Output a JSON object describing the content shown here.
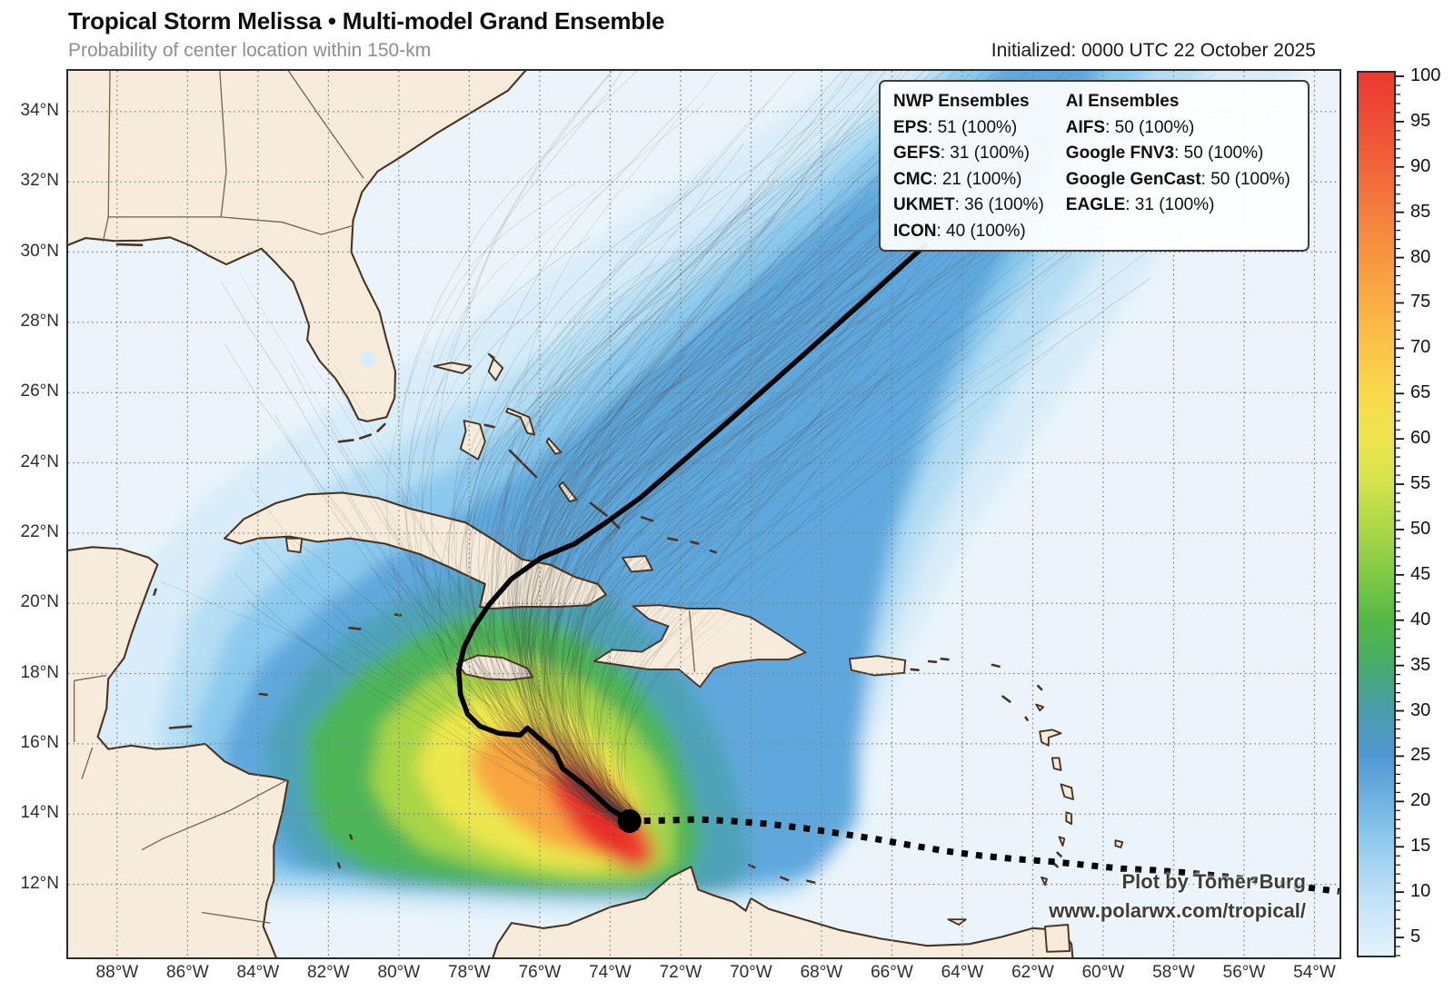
{
  "header": {
    "title": "Tropical Storm Melissa • Multi-model Grand Ensemble",
    "subtitle": "Probability of center location within 150-km",
    "initialized": "Initialized: 0000 UTC 22 October 2025"
  },
  "attribution": {
    "line1": "Plot by Tomer Burg",
    "line2": "www.polarwx.com/tropical/"
  },
  "legend": {
    "columns": [
      {
        "header": "NWP Ensembles",
        "entries": [
          {
            "name": "EPS",
            "value": "51 (100%)"
          },
          {
            "name": "GEFS",
            "value": "31 (100%)"
          },
          {
            "name": "CMC",
            "value": "21 (100%)"
          },
          {
            "name": "UKMET",
            "value": "36 (100%)"
          },
          {
            "name": "ICON",
            "value": "40 (100%)"
          }
        ]
      },
      {
        "header": "AI Ensembles",
        "entries": [
          {
            "name": "AIFS",
            "value": "50 (100%)"
          },
          {
            "name": "Google FNV3",
            "value": "50 (100%)"
          },
          {
            "name": "Google GenCast",
            "value": "50 (100%)"
          },
          {
            "name": "EAGLE",
            "value": "31 (100%)"
          }
        ]
      }
    ]
  },
  "axes": {
    "x_ticks": [
      [
        88,
        "88°W"
      ],
      [
        86,
        "86°W"
      ],
      [
        84,
        "84°W"
      ],
      [
        82,
        "82°W"
      ],
      [
        80,
        "80°W"
      ],
      [
        78,
        "78°W"
      ],
      [
        76,
        "76°W"
      ],
      [
        74,
        "74°W"
      ],
      [
        72,
        "72°W"
      ],
      [
        70,
        "70°W"
      ],
      [
        68,
        "68°W"
      ],
      [
        66,
        "66°W"
      ],
      [
        64,
        "64°W"
      ],
      [
        62,
        "62°W"
      ],
      [
        60,
        "60°W"
      ],
      [
        58,
        "58°W"
      ],
      [
        56,
        "56°W"
      ],
      [
        54,
        "54°W"
      ]
    ],
    "y_ticks": [
      [
        34,
        "34°N"
      ],
      [
        32,
        "32°N"
      ],
      [
        30,
        "30°N"
      ],
      [
        28,
        "28°N"
      ],
      [
        26,
        "26°N"
      ],
      [
        24,
        "24°N"
      ],
      [
        22,
        "22°N"
      ],
      [
        20,
        "20°N"
      ],
      [
        18,
        "18°N"
      ],
      [
        16,
        "16°N"
      ],
      [
        14,
        "14°N"
      ],
      [
        12,
        "12°N"
      ]
    ]
  },
  "colorbar": {
    "unit": "%",
    "label_values": [
      100,
      95,
      90,
      85,
      80,
      75,
      70,
      65,
      60,
      55,
      50,
      45,
      40,
      35,
      30,
      25,
      20,
      15,
      10,
      5
    ],
    "stops": [
      [
        100,
        "#ec3a31"
      ],
      [
        95,
        "#ee4f35"
      ],
      [
        90,
        "#f1653a"
      ],
      [
        85,
        "#f47f3e"
      ],
      [
        80,
        "#f79741"
      ],
      [
        75,
        "#f9ae45"
      ],
      [
        70,
        "#fbc448"
      ],
      [
        65,
        "#f8da4b"
      ],
      [
        60,
        "#eee54e"
      ],
      [
        55,
        "#d2e24b"
      ],
      [
        50,
        "#aad747"
      ],
      [
        45,
        "#80ca45"
      ],
      [
        40,
        "#54b847"
      ],
      [
        35,
        "#47ab68"
      ],
      [
        30,
        "#4a9dab"
      ],
      [
        25,
        "#5197d2"
      ],
      [
        20,
        "#6fb2e2"
      ],
      [
        15,
        "#93cbee"
      ],
      [
        10,
        "#bbdef4"
      ],
      [
        5,
        "#d9edfa"
      ],
      [
        3,
        "#e3f2fb"
      ]
    ]
  },
  "colors": {
    "ocean": "#eaf4fa",
    "land": "#f7ecdb",
    "coast": "#4a3322",
    "state_border": "#7a604b",
    "grid": "#808080",
    "track": "#000000",
    "frame": "#2b2b2b",
    "lake": "#d9edf8",
    "spaghetti": "#3d3d3d"
  },
  "chart_data": {
    "type": "heatmap",
    "title": "Tropical Storm Melissa • Multi-model Grand Ensemble",
    "subtitle": "Probability of center location within 150-km",
    "initialized": "0000 UTC 22 October 2025",
    "storm": {
      "name": "Melissa",
      "classification": "Tropical Storm"
    },
    "extent": {
      "lon_west_W": 89.39,
      "lon_east_W": 53.29,
      "lat_south_N": 9.92,
      "lat_north_N": 35.16
    },
    "colorbar": {
      "label": "Probability of center location within 150-km (%)",
      "min": 5,
      "max": 100,
      "tick_step": 5
    },
    "ensembles": [
      {
        "group": "NWP",
        "name": "EPS",
        "members": 51,
        "availability_pct": 100
      },
      {
        "group": "NWP",
        "name": "GEFS",
        "members": 31,
        "availability_pct": 100
      },
      {
        "group": "NWP",
        "name": "CMC",
        "members": 21,
        "availability_pct": 100
      },
      {
        "group": "NWP",
        "name": "UKMET",
        "members": 36,
        "availability_pct": 100
      },
      {
        "group": "NWP",
        "name": "ICON",
        "members": 40,
        "availability_pct": 100
      },
      {
        "group": "AI",
        "name": "AIFS",
        "members": 50,
        "availability_pct": 100
      },
      {
        "group": "AI",
        "name": "Google FNV3",
        "members": 50,
        "availability_pct": 100
      },
      {
        "group": "AI",
        "name": "Google GenCast",
        "members": 50,
        "availability_pct": 100
      },
      {
        "group": "AI",
        "name": "EAGLE",
        "members": 31,
        "availability_pct": 100
      }
    ],
    "current_position": {
      "lon_W": 73.45,
      "lat_N": 13.8
    },
    "mean_track_lonW_latN": [
      [
        73.45,
        13.8
      ],
      [
        74.0,
        14.15
      ],
      [
        74.7,
        14.8
      ],
      [
        75.35,
        15.3
      ],
      [
        75.55,
        15.75
      ],
      [
        75.95,
        16.1
      ],
      [
        76.35,
        16.45
      ],
      [
        76.55,
        16.25
      ],
      [
        77.15,
        16.3
      ],
      [
        77.7,
        16.5
      ],
      [
        78.05,
        16.85
      ],
      [
        78.25,
        17.4
      ],
      [
        78.3,
        18.1
      ],
      [
        78.15,
        18.75
      ],
      [
        77.85,
        19.35
      ],
      [
        77.45,
        19.95
      ],
      [
        76.8,
        20.7
      ],
      [
        75.95,
        21.3
      ],
      [
        75.0,
        21.7
      ],
      [
        74.05,
        22.35
      ],
      [
        73.15,
        23.0
      ],
      [
        72.05,
        23.95
      ],
      [
        70.85,
        25.0
      ],
      [
        69.55,
        26.15
      ],
      [
        68.15,
        27.4
      ],
      [
        66.75,
        28.65
      ],
      [
        65.55,
        29.75
      ],
      [
        65.05,
        30.2
      ]
    ],
    "observed_track_lonW_latN": [
      [
        73.45,
        13.8
      ],
      [
        72.5,
        13.82
      ],
      [
        71.5,
        13.85
      ],
      [
        70.5,
        13.8
      ],
      [
        69.5,
        13.72
      ],
      [
        68.5,
        13.6
      ],
      [
        67.5,
        13.45
      ],
      [
        66.5,
        13.3
      ],
      [
        65.5,
        13.12
      ],
      [
        64.5,
        12.95
      ],
      [
        63.5,
        12.82
      ],
      [
        62.5,
        12.72
      ],
      [
        61.5,
        12.65
      ],
      [
        60.5,
        12.55
      ],
      [
        59.5,
        12.45
      ],
      [
        58.5,
        12.4
      ],
      [
        57.5,
        12.32
      ],
      [
        56.5,
        12.22
      ],
      [
        55.5,
        12.1
      ],
      [
        54.5,
        11.95
      ],
      [
        53.5,
        11.82
      ],
      [
        53.3,
        11.8
      ]
    ],
    "probability_bands": [
      {
        "min_pct": 5,
        "color": "#d8ecf9"
      },
      {
        "min_pct": 12,
        "color": "#b5def4"
      },
      {
        "min_pct": 18,
        "color": "#8cc9ee"
      },
      {
        "min_pct": 25,
        "color": "#5fa8dd"
      },
      {
        "min_pct": 32,
        "color": "#4fa3b8"
      },
      {
        "min_pct": 40,
        "color": "#4eb559"
      },
      {
        "min_pct": 50,
        "color": "#a9d647"
      },
      {
        "min_pct": 60,
        "color": "#ece74e"
      },
      {
        "min_pct": 75,
        "color": "#f8a441"
      },
      {
        "min_pct": 88,
        "color": "#ec4134"
      },
      {
        "min_pct": 95,
        "color": "#e62e26"
      }
    ]
  }
}
